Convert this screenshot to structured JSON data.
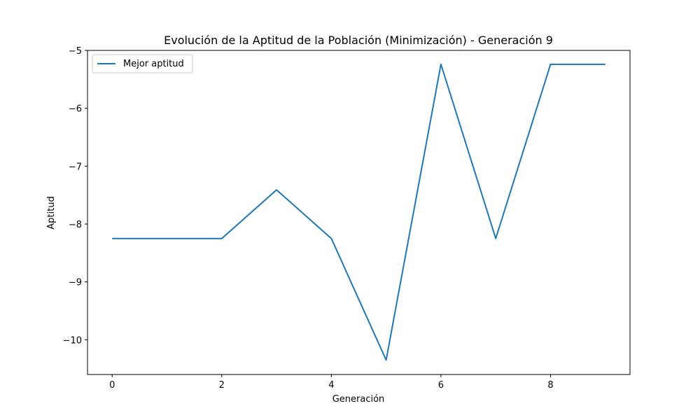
{
  "chart_data": {
    "type": "line",
    "title": "Evolución de la Aptitud de la Población (Minimización) - Generación 9",
    "xlabel": "Generación",
    "ylabel": "Aptitud",
    "xlim": [
      -0.45,
      9.45
    ],
    "ylim": [
      -10.6,
      -5.0
    ],
    "xticks": [
      0,
      2,
      4,
      6,
      8
    ],
    "xtick_labels": [
      "0",
      "2",
      "4",
      "6",
      "8"
    ],
    "yticks": [
      -10,
      -9,
      -8,
      -7,
      -6,
      -5
    ],
    "ytick_labels": [
      "−10",
      "−9",
      "−8",
      "−7",
      "−6",
      "−5"
    ],
    "grid": false,
    "legend_position": "top-left",
    "series": [
      {
        "name": "Mejor aptitud",
        "color": "#1f77b4",
        "x": [
          0,
          1,
          2,
          3,
          4,
          5,
          6,
          7,
          8,
          9
        ],
        "y": [
          -8.25,
          -8.25,
          -8.25,
          -7.41,
          -8.25,
          -10.35,
          -5.24,
          -8.25,
          -5.24,
          -5.24
        ]
      }
    ]
  }
}
